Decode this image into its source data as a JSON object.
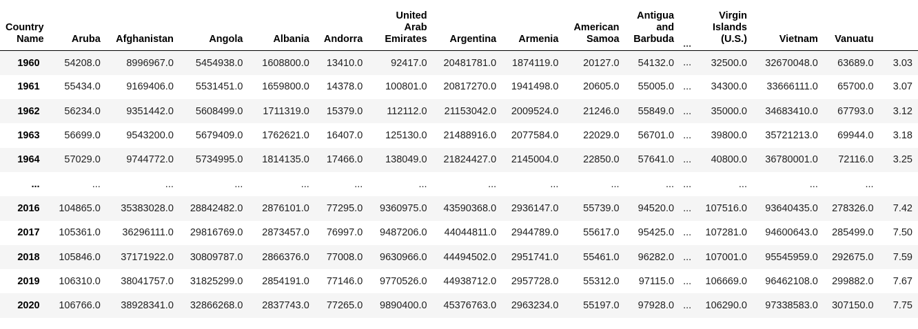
{
  "index_header": [
    "Country",
    "Name"
  ],
  "columns": [
    {
      "lines": [
        "Aruba"
      ]
    },
    {
      "lines": [
        "Afghanistan"
      ]
    },
    {
      "lines": [
        "Angola"
      ]
    },
    {
      "lines": [
        "Albania"
      ]
    },
    {
      "lines": [
        "Andorra"
      ]
    },
    {
      "lines": [
        "United",
        "Arab",
        "Emirates"
      ]
    },
    {
      "lines": [
        "Argentina"
      ]
    },
    {
      "lines": [
        "Armenia"
      ]
    },
    {
      "lines": [
        "American",
        "Samoa"
      ]
    },
    {
      "lines": [
        "Antigua",
        "and",
        "Barbuda"
      ]
    },
    {
      "lines": [
        "..."
      ]
    },
    {
      "lines": [
        "Virgin",
        "Islands",
        "(U.S.)"
      ]
    },
    {
      "lines": [
        "Vietnam"
      ]
    },
    {
      "lines": [
        "Vanuatu"
      ]
    },
    {
      "lines": [
        ""
      ]
    }
  ],
  "rows": [
    {
      "index": "1960",
      "cells": [
        "54208.0",
        "8996967.0",
        "5454938.0",
        "1608800.0",
        "13410.0",
        "92417.0",
        "20481781.0",
        "1874119.0",
        "20127.0",
        "54132.0",
        "...",
        "32500.0",
        "32670048.0",
        "63689.0",
        "3.03"
      ]
    },
    {
      "index": "1961",
      "cells": [
        "55434.0",
        "9169406.0",
        "5531451.0",
        "1659800.0",
        "14378.0",
        "100801.0",
        "20817270.0",
        "1941498.0",
        "20605.0",
        "55005.0",
        "...",
        "34300.0",
        "33666111.0",
        "65700.0",
        "3.07"
      ]
    },
    {
      "index": "1962",
      "cells": [
        "56234.0",
        "9351442.0",
        "5608499.0",
        "1711319.0",
        "15379.0",
        "112112.0",
        "21153042.0",
        "2009524.0",
        "21246.0",
        "55849.0",
        "...",
        "35000.0",
        "34683410.0",
        "67793.0",
        "3.12"
      ]
    },
    {
      "index": "1963",
      "cells": [
        "56699.0",
        "9543200.0",
        "5679409.0",
        "1762621.0",
        "16407.0",
        "125130.0",
        "21488916.0",
        "2077584.0",
        "22029.0",
        "56701.0",
        "...",
        "39800.0",
        "35721213.0",
        "69944.0",
        "3.18"
      ]
    },
    {
      "index": "1964",
      "cells": [
        "57029.0",
        "9744772.0",
        "5734995.0",
        "1814135.0",
        "17466.0",
        "138049.0",
        "21824427.0",
        "2145004.0",
        "22850.0",
        "57641.0",
        "...",
        "40800.0",
        "36780001.0",
        "72116.0",
        "3.25"
      ]
    },
    {
      "index": "...",
      "cells": [
        "...",
        "...",
        "...",
        "...",
        "...",
        "...",
        "...",
        "...",
        "...",
        "...",
        "...",
        "...",
        "...",
        "...",
        ""
      ]
    },
    {
      "index": "2016",
      "cells": [
        "104865.0",
        "35383028.0",
        "28842482.0",
        "2876101.0",
        "77295.0",
        "9360975.0",
        "43590368.0",
        "2936147.0",
        "55739.0",
        "94520.0",
        "...",
        "107516.0",
        "93640435.0",
        "278326.0",
        "7.42"
      ]
    },
    {
      "index": "2017",
      "cells": [
        "105361.0",
        "36296111.0",
        "29816769.0",
        "2873457.0",
        "76997.0",
        "9487206.0",
        "44044811.0",
        "2944789.0",
        "55617.0",
        "95425.0",
        "...",
        "107281.0",
        "94600643.0",
        "285499.0",
        "7.50"
      ]
    },
    {
      "index": "2018",
      "cells": [
        "105846.0",
        "37171922.0",
        "30809787.0",
        "2866376.0",
        "77008.0",
        "9630966.0",
        "44494502.0",
        "2951741.0",
        "55461.0",
        "96282.0",
        "...",
        "107001.0",
        "95545959.0",
        "292675.0",
        "7.59"
      ]
    },
    {
      "index": "2019",
      "cells": [
        "106310.0",
        "38041757.0",
        "31825299.0",
        "2854191.0",
        "77146.0",
        "9770526.0",
        "44938712.0",
        "2957728.0",
        "55312.0",
        "97115.0",
        "...",
        "106669.0",
        "96462108.0",
        "299882.0",
        "7.67"
      ]
    },
    {
      "index": "2020",
      "cells": [
        "106766.0",
        "38928341.0",
        "32866268.0",
        "2837743.0",
        "77265.0",
        "9890400.0",
        "45376763.0",
        "2963234.0",
        "55197.0",
        "97928.0",
        "...",
        "106290.0",
        "97338583.0",
        "307150.0",
        "7.75"
      ]
    }
  ]
}
